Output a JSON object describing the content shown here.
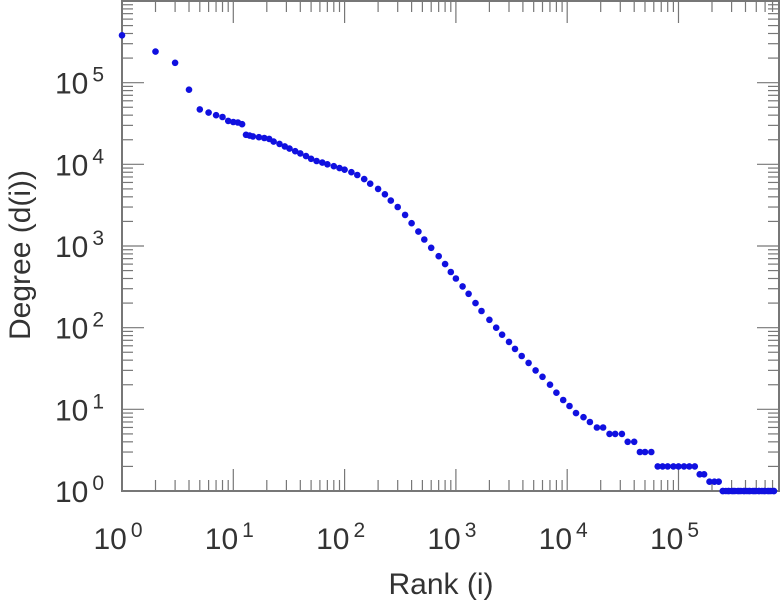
{
  "chart_data": {
    "type": "scatter",
    "xlabel": "Rank (i)",
    "ylabel": "Degree (d(i))",
    "xscale": "log",
    "yscale": "log",
    "xlim": [
      1,
      800000
    ],
    "ylim": [
      1,
      1000000
    ],
    "x_ticks": [
      {
        "base": "10",
        "exp": "0"
      },
      {
        "base": "10",
        "exp": "1"
      },
      {
        "base": "10",
        "exp": "2"
      },
      {
        "base": "10",
        "exp": "3"
      },
      {
        "base": "10",
        "exp": "4"
      },
      {
        "base": "10",
        "exp": "5"
      }
    ],
    "y_ticks": [
      {
        "base": "10",
        "exp": "0"
      },
      {
        "base": "10",
        "exp": "1"
      },
      {
        "base": "10",
        "exp": "2"
      },
      {
        "base": "10",
        "exp": "3"
      },
      {
        "base": "10",
        "exp": "4"
      },
      {
        "base": "10",
        "exp": "5"
      }
    ],
    "marker_color": "#1010e0",
    "frame_color": "#777777",
    "grid": false,
    "series": [
      {
        "points": [
          [
            1,
            380000
          ],
          [
            2,
            240000
          ],
          [
            3,
            175000
          ],
          [
            4,
            82000
          ],
          [
            5,
            47000
          ],
          [
            6,
            43000
          ],
          [
            7,
            40000
          ],
          [
            8,
            38000
          ],
          [
            9,
            34000
          ],
          [
            10,
            33000
          ],
          [
            11,
            32500
          ],
          [
            12,
            31000
          ],
          [
            13,
            23000
          ],
          [
            14,
            22500
          ],
          [
            15,
            22000
          ],
          [
            17,
            21500
          ],
          [
            19,
            21000
          ],
          [
            21,
            20500
          ],
          [
            23,
            19000
          ],
          [
            26,
            17800
          ],
          [
            29,
            16600
          ],
          [
            32,
            15600
          ],
          [
            36,
            14500
          ],
          [
            40,
            13600
          ],
          [
            45,
            12600
          ],
          [
            50,
            11700
          ],
          [
            56,
            11000
          ],
          [
            63,
            10500
          ],
          [
            70,
            10000
          ],
          [
            80,
            9500
          ],
          [
            90,
            9000
          ],
          [
            100,
            8600
          ],
          [
            115,
            8000
          ],
          [
            130,
            7400
          ],
          [
            150,
            6600
          ],
          [
            170,
            5800
          ],
          [
            200,
            5000
          ],
          [
            230,
            4300
          ],
          [
            260,
            3600
          ],
          [
            300,
            3000
          ],
          [
            350,
            2400
          ],
          [
            400,
            1900
          ],
          [
            460,
            1500
          ],
          [
            520,
            1200
          ],
          [
            600,
            950
          ],
          [
            700,
            750
          ],
          [
            800,
            600
          ],
          [
            900,
            480
          ],
          [
            1000,
            400
          ],
          [
            1150,
            320
          ],
          [
            1300,
            260
          ],
          [
            1500,
            200
          ],
          [
            1700,
            160
          ],
          [
            2000,
            125
          ],
          [
            2300,
            100
          ],
          [
            2600,
            82
          ],
          [
            3000,
            67
          ],
          [
            3400,
            55
          ],
          [
            3900,
            45
          ],
          [
            4500,
            37
          ],
          [
            5200,
            30
          ],
          [
            6000,
            25
          ],
          [
            7000,
            20
          ],
          [
            8000,
            16
          ],
          [
            9200,
            13
          ],
          [
            10500,
            11
          ],
          [
            12000,
            9
          ],
          [
            14000,
            8
          ],
          [
            16000,
            7
          ],
          [
            18500,
            6
          ],
          [
            21000,
            6
          ],
          [
            24000,
            5
          ],
          [
            27000,
            5
          ],
          [
            31000,
            5
          ],
          [
            35000,
            4
          ],
          [
            40000,
            4
          ],
          [
            45000,
            3
          ],
          [
            50000,
            3
          ],
          [
            57000,
            3
          ],
          [
            65000,
            2
          ],
          [
            72000,
            2
          ],
          [
            80000,
            2
          ],
          [
            90000,
            2
          ],
          [
            100000,
            2
          ],
          [
            112000,
            2
          ],
          [
            125000,
            2
          ],
          [
            140000,
            2
          ],
          [
            155000,
            1.6
          ],
          [
            170000,
            1.6
          ],
          [
            190000,
            1.3
          ],
          [
            210000,
            1.3
          ],
          [
            230000,
            1.3
          ],
          [
            250000,
            1
          ],
          [
            280000,
            1
          ],
          [
            310000,
            1
          ],
          [
            350000,
            1
          ],
          [
            390000,
            1
          ],
          [
            430000,
            1
          ],
          [
            480000,
            1
          ],
          [
            530000,
            1
          ],
          [
            590000,
            1
          ],
          [
            650000,
            1
          ],
          [
            720000,
            1
          ]
        ]
      }
    ]
  }
}
